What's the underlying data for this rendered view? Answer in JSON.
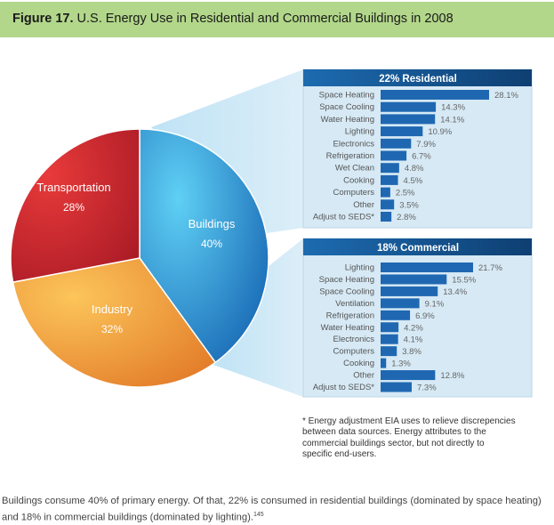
{
  "figure_label": "Figure 17.",
  "title": "U.S. Energy Use in Residential and Commercial Buildings in 2008",
  "chart_data": [
    {
      "type": "pie",
      "slices": [
        {
          "label": "Buildings",
          "value": 40,
          "value_label": "40%",
          "color": "#2a8fd6"
        },
        {
          "label": "Industry",
          "value": 32,
          "value_label": "32%",
          "color": "#f0a23c"
        },
        {
          "label": "Transportation",
          "value": 28,
          "value_label": "28%",
          "color": "#d42a2f"
        }
      ]
    },
    {
      "type": "bar",
      "title": "22% Residential",
      "orientation": "horizontal",
      "categories": [
        "Space Heating",
        "Space Cooling",
        "Water Heating",
        "Lighting",
        "Electronics",
        "Refrigeration",
        "Wet Clean",
        "Cooking",
        "Computers",
        "Other",
        "Adjust to SEDS*"
      ],
      "values": [
        28.1,
        14.3,
        14.1,
        10.9,
        7.9,
        6.7,
        4.8,
        4.5,
        2.5,
        3.5,
        2.8
      ],
      "labels": [
        "28.1%",
        "14.3%",
        "14.1%",
        "10.9%",
        "7.9%",
        "6.7%",
        "4.8%",
        "4.5%",
        "2.5%",
        "3.5%",
        "2.8%"
      ]
    },
    {
      "type": "bar",
      "title": "18% Commercial",
      "orientation": "horizontal",
      "categories": [
        "Lighting",
        "Space Heating",
        "Space Cooling",
        "Ventilation",
        "Refrigeration",
        "Water Heating",
        "Electronics",
        "Computers",
        "Cooking",
        "Other",
        "Adjust to SEDS*"
      ],
      "values": [
        21.7,
        15.5,
        13.4,
        9.1,
        6.9,
        4.2,
        4.1,
        3.8,
        1.3,
        12.8,
        7.3
      ],
      "labels": [
        "21.7%",
        "15.5%",
        "13.4%",
        "9.1%",
        "6.9%",
        "4.2%",
        "4.1%",
        "3.8%",
        "1.3%",
        "12.8%",
        "7.3%"
      ]
    }
  ],
  "footnote": "* Energy adjustment EIA uses to relieve discrepencies between data sources. Energy attributes to the commercial buildings sector, but not directly to specific end-users.",
  "caption": "Buildings consume 40% of primary energy. Of that, 22% is consumed in residential buildings (dominated by space heating) and 18% in commercial buildings (dominated by lighting).",
  "caption_ref": "145"
}
